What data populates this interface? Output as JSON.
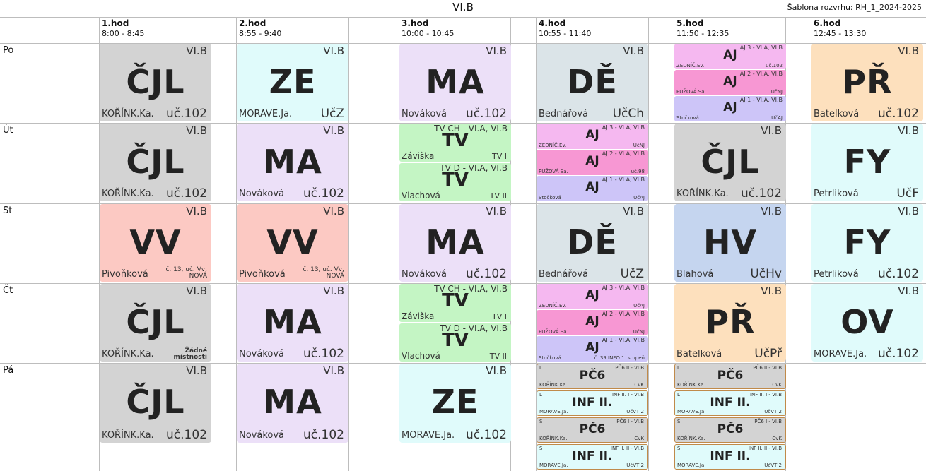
{
  "header": {
    "title": "VI.B",
    "template": "Šablona rozvrhu: RH_1_2024-2025"
  },
  "periods": [
    {
      "name": "1.hod",
      "time": "8:00 - 8:45"
    },
    {
      "name": "2.hod",
      "time": "8:55 - 9:40"
    },
    {
      "name": "3.hod",
      "time": "10:00 - 10:45"
    },
    {
      "name": "4.hod",
      "time": "10:55 - 11:40"
    },
    {
      "name": "5.hod",
      "time": "11:50 - 12:35"
    },
    {
      "name": "6.hod",
      "time": "12:45 - 13:30"
    }
  ],
  "days": [
    "Po",
    "Út",
    "St",
    "Čt",
    "Pá"
  ],
  "lessons": [
    {
      "day": 0,
      "period": 0,
      "cls": "VI.B",
      "subject": "ČJL",
      "teacher": "KOŘÍNK.Ka.",
      "room": "uč.102",
      "color": "#d3d3d3"
    },
    {
      "day": 0,
      "period": 1,
      "cls": "VI.B",
      "subject": "ZE",
      "teacher": "MORAVE.Ja.",
      "room": "UčZ",
      "color": "#e0fbfb"
    },
    {
      "day": 0,
      "period": 2,
      "cls": "VI.B",
      "subject": "MA",
      "teacher": "Nováková",
      "room": "uč.102",
      "color": "#ece0f8"
    },
    {
      "day": 0,
      "period": 3,
      "cls": "VI.B",
      "subject": "DĚ",
      "teacher": "Bednářová",
      "room": "UčCh",
      "color": "#dbe4e8"
    },
    {
      "day": 0,
      "period": 5,
      "cls": "VI.B",
      "subject": "PŘ",
      "teacher": "Batelková",
      "room": "uč.102",
      "color": "#fde0bd"
    },
    {
      "day": 1,
      "period": 0,
      "cls": "VI.B",
      "subject": "ČJL",
      "teacher": "KOŘÍNK.Ka.",
      "room": "uč.102",
      "color": "#d3d3d3"
    },
    {
      "day": 1,
      "period": 1,
      "cls": "VI.B",
      "subject": "MA",
      "teacher": "Nováková",
      "room": "uč.102",
      "color": "#ece0f8"
    },
    {
      "day": 1,
      "period": 4,
      "cls": "VI.B",
      "subject": "ČJL",
      "teacher": "KOŘÍNK.Ka.",
      "room": "uč.102",
      "color": "#d3d3d3"
    },
    {
      "day": 1,
      "period": 5,
      "cls": "VI.B",
      "subject": "FY",
      "teacher": "Petrliková",
      "room": "UčF",
      "color": "#e0fbfb"
    },
    {
      "day": 2,
      "period": 0,
      "cls": "VI.B",
      "subject": "VV",
      "teacher": "Pivoňková",
      "room": "č. 13, uč. Vv, NOVÁ",
      "roomSmall": true,
      "color": "#fcc9c3"
    },
    {
      "day": 2,
      "period": 1,
      "cls": "VI.B",
      "subject": "VV",
      "teacher": "Pivoňková",
      "room": "č. 13, uč. Vv, NOVÁ",
      "roomSmall": true,
      "color": "#fcc9c3"
    },
    {
      "day": 2,
      "period": 2,
      "cls": "VI.B",
      "subject": "MA",
      "teacher": "Nováková",
      "room": "uč.102",
      "color": "#ece0f8"
    },
    {
      "day": 2,
      "period": 3,
      "cls": "VI.B",
      "subject": "DĚ",
      "teacher": "Bednářová",
      "room": "UčZ",
      "color": "#dbe4e8"
    },
    {
      "day": 2,
      "period": 4,
      "cls": "VI.B",
      "subject": "HV",
      "teacher": "Blahová",
      "room": "UčHv",
      "color": "#c5d5ef"
    },
    {
      "day": 2,
      "period": 5,
      "cls": "VI.B",
      "subject": "FY",
      "teacher": "Petrliková",
      "room": "uč.102",
      "color": "#e0fbfb"
    },
    {
      "day": 3,
      "period": 0,
      "cls": "VI.B",
      "subject": "ČJL",
      "teacher": "KOŘÍNK.Ka.",
      "room": "Žádné místnosti",
      "roomBold": true,
      "color": "#d3d3d3"
    },
    {
      "day": 3,
      "period": 1,
      "cls": "VI.B",
      "subject": "MA",
      "teacher": "Nováková",
      "room": "uč.102",
      "color": "#ece0f8"
    },
    {
      "day": 3,
      "period": 4,
      "cls": "VI.B",
      "subject": "PŘ",
      "teacher": "Batelková",
      "room": "UčPř",
      "color": "#fde0bd"
    },
    {
      "day": 3,
      "period": 5,
      "cls": "VI.B",
      "subject": "OV",
      "teacher": "MORAVE.Ja.",
      "room": "uč.102",
      "color": "#e0fbfb"
    },
    {
      "day": 4,
      "period": 0,
      "cls": "VI.B",
      "subject": "ČJL",
      "teacher": "KOŘÍNK.Ka.",
      "room": "uč.102",
      "color": "#d3d3d3"
    },
    {
      "day": 4,
      "period": 1,
      "cls": "VI.B",
      "subject": "MA",
      "teacher": "Nováková",
      "room": "uč.102",
      "color": "#ece0f8"
    },
    {
      "day": 4,
      "period": 2,
      "cls": "VI.B",
      "subject": "ZE",
      "teacher": "MORAVE.Ja.",
      "room": "uč.102",
      "color": "#e0fbfb"
    }
  ],
  "aj_groups": [
    {
      "day": 0,
      "period": 4,
      "items": [
        {
          "cls": "AJ 3 - VI.A, VI.B",
          "subject": "AJ",
          "teacher": "ZEDNÍČ.Ev.",
          "room": "uč.102",
          "color": "#f5b8f0"
        },
        {
          "cls": "AJ 2 - VI.A, VI.B",
          "subject": "AJ",
          "teacher": "PUŽOVÁ Sa.",
          "room": "UčNJ",
          "color": "#f797d3"
        },
        {
          "cls": "AJ 1 - VI.A, VI.B",
          "subject": "AJ",
          "teacher": "Stočková",
          "room": "UčAJ",
          "color": "#cdc5f8"
        }
      ]
    },
    {
      "day": 1,
      "period": 3,
      "items": [
        {
          "cls": "AJ 3 - VI.A, VI.B",
          "subject": "AJ",
          "teacher": "ZEDNÍČ.Ev.",
          "room": "UčNJ",
          "color": "#f5b8f0"
        },
        {
          "cls": "AJ 2 - VI.A, VI.B",
          "subject": "AJ",
          "teacher": "PUŽOVÁ Sa.",
          "room": "uč.98",
          "color": "#f797d3"
        },
        {
          "cls": "AJ 1 - VI.A, VI.B",
          "subject": "AJ",
          "teacher": "Stočková",
          "room": "UčAJ",
          "color": "#cdc5f8"
        }
      ]
    },
    {
      "day": 3,
      "period": 3,
      "items": [
        {
          "cls": "AJ 3 - VI.A, VI.B",
          "subject": "AJ",
          "teacher": "ZEDNÍČ.Ev.",
          "room": "UčAJ",
          "color": "#f5b8f0"
        },
        {
          "cls": "AJ 2 - VI.A, VI.B",
          "subject": "AJ",
          "teacher": "PUŽOVÁ Sa.",
          "room": "UčNJ",
          "color": "#f797d3"
        },
        {
          "cls": "AJ 1 - VI.A, VI.B",
          "subject": "AJ",
          "teacher": "Stočková",
          "room": "č. 39 INFO 1. stupeň",
          "color": "#cdc5f8"
        }
      ]
    }
  ],
  "tv_groups": [
    {
      "day": 1,
      "period": 2,
      "items": [
        {
          "cls": "TV CH - VI.A, VI.B",
          "subject": "TV",
          "teacher": "Záviška",
          "room": "TV I",
          "color": "#c4f5c4"
        },
        {
          "cls": "TV D - VI.A, VI.B",
          "subject": "TV",
          "teacher": "Vlachová",
          "room": "TV II",
          "color": "#c4f5c4"
        }
      ]
    },
    {
      "day": 3,
      "period": 2,
      "items": [
        {
          "cls": "TV CH - VI.A, VI.B",
          "subject": "TV",
          "teacher": "Záviška",
          "room": "TV I",
          "color": "#c4f5c4"
        },
        {
          "cls": "TV D - VI.A, VI.B",
          "subject": "TV",
          "teacher": "Vlachová",
          "room": "TV II",
          "color": "#c4f5c4"
        }
      ]
    }
  ],
  "friday_groups": [
    {
      "period": 3,
      "items": [
        {
          "week": "L",
          "cls": "PČ6 II - VI.B",
          "subject": "PČ6",
          "teacher": "KOŘÍNK.Ka.",
          "room": "CvK",
          "color": "#d3d3d3"
        },
        {
          "week": "L",
          "cls": "INF II. I - VI.B",
          "subject": "INF II.",
          "teacher": "MORAVE.Ja.",
          "room": "UčVT 2",
          "color": "#e0fbfb"
        },
        {
          "week": "S",
          "cls": "PČ6 I - VI.B",
          "subject": "PČ6",
          "teacher": "KOŘÍNK.Ka.",
          "room": "CvK",
          "color": "#d3d3d3"
        },
        {
          "week": "S",
          "cls": "INF II. II - VI.B",
          "subject": "INF II.",
          "teacher": "MORAVE.Ja.",
          "room": "UčVT 2",
          "color": "#e0fbfb"
        }
      ]
    },
    {
      "period": 4,
      "items": [
        {
          "week": "L",
          "cls": "PČ6 II - VI.B",
          "subject": "PČ6",
          "teacher": "KOŘÍNK.Ka.",
          "room": "CvK",
          "color": "#d3d3d3"
        },
        {
          "week": "L",
          "cls": "INF II. I - VI.B",
          "subject": "INF II.",
          "teacher": "MORAVE.Ja.",
          "room": "UčVT 2",
          "color": "#e0fbfb"
        },
        {
          "week": "S",
          "cls": "PČ6 I - VI.B",
          "subject": "PČ6",
          "teacher": "KOŘÍNK.Ka.",
          "room": "CvK",
          "color": "#d3d3d3"
        },
        {
          "week": "S",
          "cls": "INF II. II - VI.B",
          "subject": "INF II.",
          "teacher": "MORAVE.Ja.",
          "room": "UčVT 2",
          "color": "#e0fbfb"
        }
      ]
    }
  ]
}
